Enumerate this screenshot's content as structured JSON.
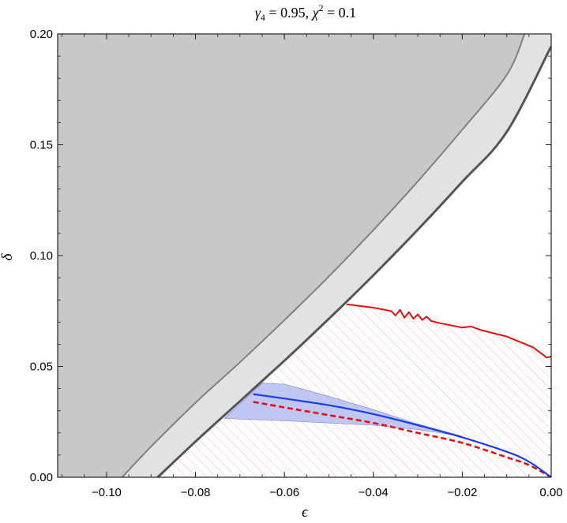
{
  "chart_data": {
    "type": "area",
    "title": "γ₄ = 0.95,  χ² = 0.1",
    "title_parts": {
      "gamma": "γ",
      "gamma_sub": "4",
      "gamma_value": " = 0.95, ",
      "chi": "χ",
      "chi_sup": "2",
      "chi_value": " = 0.1"
    },
    "xlabel": "ϵ",
    "ylabel": "δ",
    "xlim": [
      -0.111,
      0.0
    ],
    "ylim": [
      0.0,
      0.2
    ],
    "x_ticks": [
      -0.1,
      -0.08,
      -0.06,
      -0.04,
      -0.02,
      0.0
    ],
    "x_tick_labels": [
      "−0.10",
      "−0.08",
      "−0.06",
      "−0.04",
      "−0.02",
      "0.00"
    ],
    "y_ticks": [
      0.0,
      0.05,
      0.1,
      0.15,
      0.2
    ],
    "y_tick_labels": [
      "0.00",
      "0.05",
      "0.10",
      "0.15",
      "0.20"
    ],
    "grid": false,
    "colors": {
      "excluded_dark": "#c8c8c8",
      "excluded_light": "#e2e2e2",
      "boundary_outer": "#808080",
      "boundary_inner": "#555555",
      "red_curve": "#e8100f",
      "red_hatch": "#f2b8b8",
      "blue_curve": "#1a3ee6",
      "blue_band": "#b4bdf0",
      "frame": "#222222"
    },
    "series": [
      {
        "kind": "boundary-outer",
        "x": [
          -0.0965,
          -0.09,
          -0.08,
          -0.07,
          -0.06,
          -0.05,
          -0.04,
          -0.03,
          -0.02,
          -0.01,
          -0.006
        ],
        "y": [
          0.0,
          0.0138,
          0.0336,
          0.0519,
          0.0709,
          0.0906,
          0.1115,
          0.1335,
          0.1568,
          0.1815,
          0.2
        ]
      },
      {
        "kind": "boundary-inner",
        "x": [
          -0.0885,
          -0.08,
          -0.07,
          -0.06,
          -0.05,
          -0.04,
          -0.03,
          -0.02,
          -0.01,
          0.0
        ],
        "y": [
          0.0,
          0.0161,
          0.0343,
          0.0526,
          0.0715,
          0.0911,
          0.1117,
          0.1333,
          0.1558,
          0.1944
        ]
      },
      {
        "kind": "red-upper",
        "x": [
          -0.046,
          -0.04,
          -0.036,
          -0.035,
          -0.034,
          -0.033,
          -0.032,
          -0.031,
          -0.03,
          -0.029,
          -0.028,
          -0.027,
          -0.025,
          -0.02,
          -0.018,
          -0.016,
          -0.01,
          -0.004,
          -0.001,
          0.0
        ],
        "y": [
          0.078,
          0.0765,
          0.075,
          0.073,
          0.0755,
          0.072,
          0.0745,
          0.0715,
          0.0735,
          0.071,
          0.0725,
          0.0705,
          0.0695,
          0.0675,
          0.068,
          0.0665,
          0.0635,
          0.0585,
          0.054,
          0.0545
        ]
      },
      {
        "kind": "blue-solid",
        "x": [
          -0.067,
          -0.06,
          -0.05,
          -0.04,
          -0.03,
          -0.02,
          -0.01,
          -0.005,
          0.0
        ],
        "y": [
          0.0375,
          0.0355,
          0.0325,
          0.0285,
          0.0235,
          0.018,
          0.0115,
          0.007,
          0.0
        ]
      },
      {
        "kind": "red-dashed",
        "x": [
          -0.067,
          -0.06,
          -0.05,
          -0.04,
          -0.03,
          -0.02,
          -0.01,
          -0.005,
          0.0
        ],
        "y": [
          0.034,
          0.0315,
          0.028,
          0.0245,
          0.02,
          0.0155,
          0.009,
          0.0055,
          0.0
        ]
      },
      {
        "kind": "blue-band",
        "x_upper": [
          -0.0735,
          -0.065,
          -0.06,
          -0.05,
          -0.04,
          -0.03,
          -0.02
        ],
        "y_upper": [
          0.0265,
          0.0425,
          0.042,
          0.0365,
          0.0305,
          0.024,
          0.0185
        ],
        "x_lower": [
          -0.02,
          -0.03,
          -0.04,
          -0.05,
          -0.06,
          -0.0735
        ],
        "y_lower": [
          0.0185,
          0.0215,
          0.0235,
          0.0245,
          0.0255,
          0.0265
        ]
      }
    ]
  }
}
